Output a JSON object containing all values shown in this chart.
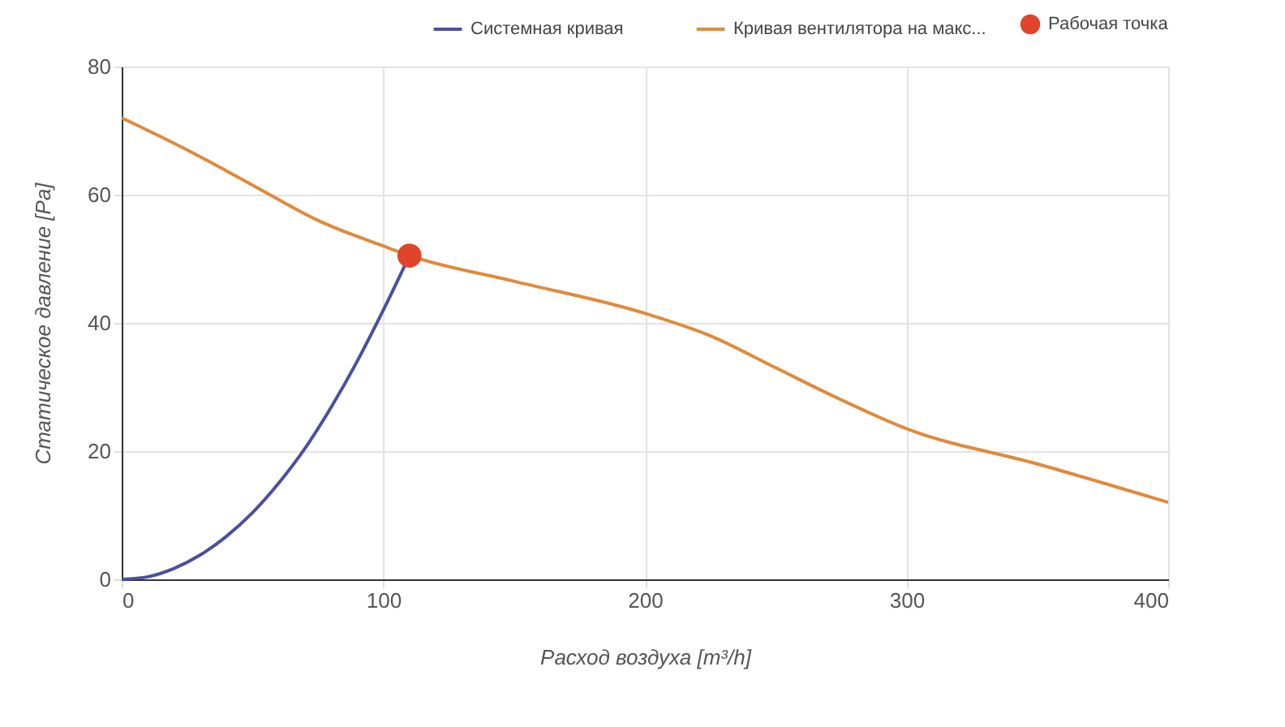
{
  "chart_data": {
    "type": "line",
    "xlabel": "Расход воздуха [m³/h]",
    "ylabel": "Статическое давление [Pa]",
    "xlim": [
      0,
      400
    ],
    "xticks": [
      0,
      100,
      200,
      300,
      400
    ],
    "ylim": [
      0,
      80
    ],
    "yticks": [
      0,
      20,
      40,
      60,
      80
    ],
    "grid": true,
    "legend": "top",
    "series": [
      {
        "name": "Системная кривая",
        "color": "#4b4f9c",
        "x": [
          0,
          10,
          20,
          30,
          40,
          50,
          60,
          70,
          80,
          90,
          100,
          110
        ],
        "values": [
          0,
          0.4,
          1.7,
          3.8,
          6.7,
          10.4,
          15,
          20.4,
          26.8,
          34,
          42,
          50.5
        ]
      },
      {
        "name": "Кривая вентилятора на макс...",
        "color": "#e08a3c",
        "x": [
          0,
          25,
          50,
          75,
          100,
          110,
          150,
          200,
          225,
          250,
          275,
          300,
          350,
          400
        ],
        "values": [
          72,
          67,
          61.5,
          56,
          52,
          50.5,
          46.5,
          41.5,
          38,
          33,
          28,
          23.5,
          18,
          12
        ]
      },
      {
        "name": "Рабочая точка",
        "type": "scatter",
        "marker": "circle",
        "color": "#e0442a",
        "x": [
          110
        ],
        "values": [
          50.5
        ]
      }
    ]
  }
}
